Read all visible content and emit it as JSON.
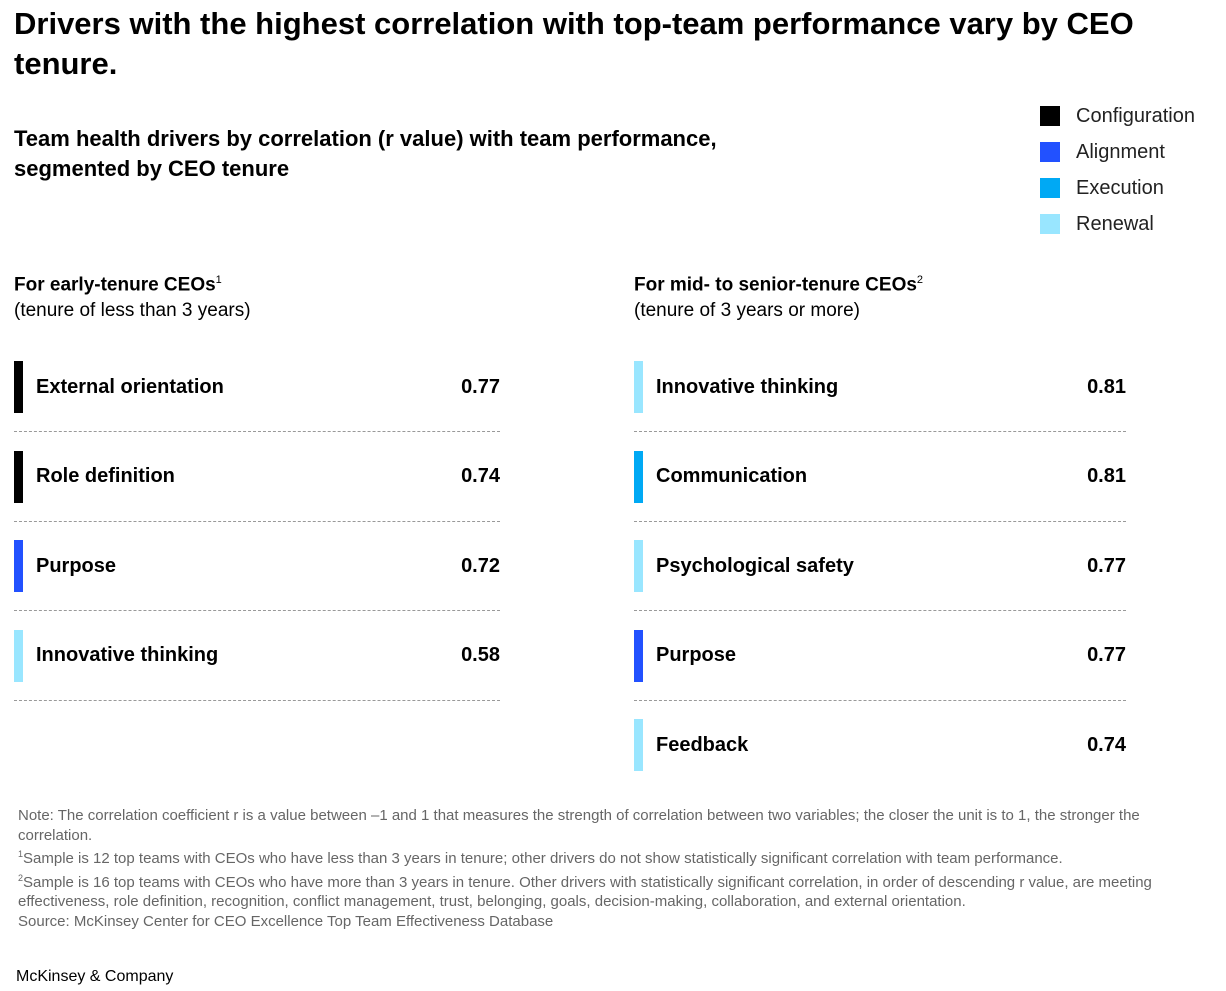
{
  "title": "Drivers with the highest correlation with top-team performance vary by CEO tenure.",
  "subtitle": "Team health drivers by correlation (r value) with team performance, segmented by CEO tenure",
  "colors": {
    "Configuration": "#000000",
    "Alignment": "#2251ff",
    "Execution": "#00a9f4",
    "Renewal": "#99e6ff"
  },
  "chart_data": [
    {
      "type": "table",
      "title": "For early-tenure CEOs",
      "footnote_marker": "1",
      "subtitle": "(tenure of less than 3 years)",
      "rows": [
        {
          "driver": "External orientation",
          "category": "Configuration",
          "r": "0.77"
        },
        {
          "driver": "Role definition",
          "category": "Configuration",
          "r": "0.74"
        },
        {
          "driver": "Purpose",
          "category": "Alignment",
          "r": "0.72"
        },
        {
          "driver": "Innovative thinking",
          "category": "Renewal",
          "r": "0.58"
        }
      ]
    },
    {
      "type": "table",
      "title": "For mid- to senior-tenure CEOs",
      "footnote_marker": "2",
      "subtitle": "(tenure of 3 years or more)",
      "rows": [
        {
          "driver": "Innovative thinking",
          "category": "Renewal",
          "r": "0.81"
        },
        {
          "driver": "Communication",
          "category": "Execution",
          "r": "0.81"
        },
        {
          "driver": "Psychological safety",
          "category": "Renewal",
          "r": "0.77"
        },
        {
          "driver": "Purpose",
          "category": "Alignment",
          "r": "0.77"
        },
        {
          "driver": "Feedback",
          "category": "Renewal",
          "r": "0.74"
        }
      ]
    }
  ],
  "legend": [
    "Configuration",
    "Alignment",
    "Execution",
    "Renewal"
  ],
  "notes": {
    "note": "Note: The correlation coefficient r is a value between –1 and 1 that measures the strength of correlation between two variables; the closer the unit is to 1, the stronger the correlation.",
    "fn1_marker": "1",
    "fn1": "Sample is 12 top teams with CEOs who have less than 3 years in tenure; other drivers do not show statistically significant correlation with team performance.",
    "fn2_marker": "2",
    "fn2": "Sample is 16 top teams with CEOs who have more than 3 years in tenure. Other drivers with statistically significant correlation, in order of descending r value, are meeting effectiveness, role definition, recognition, conflict management, trust, belonging, goals, decision-making, collaboration, and external orientation.",
    "source": "Source: McKinsey Center for CEO Excellence Top Team Effectiveness Database"
  },
  "brand": "McKinsey & Company"
}
